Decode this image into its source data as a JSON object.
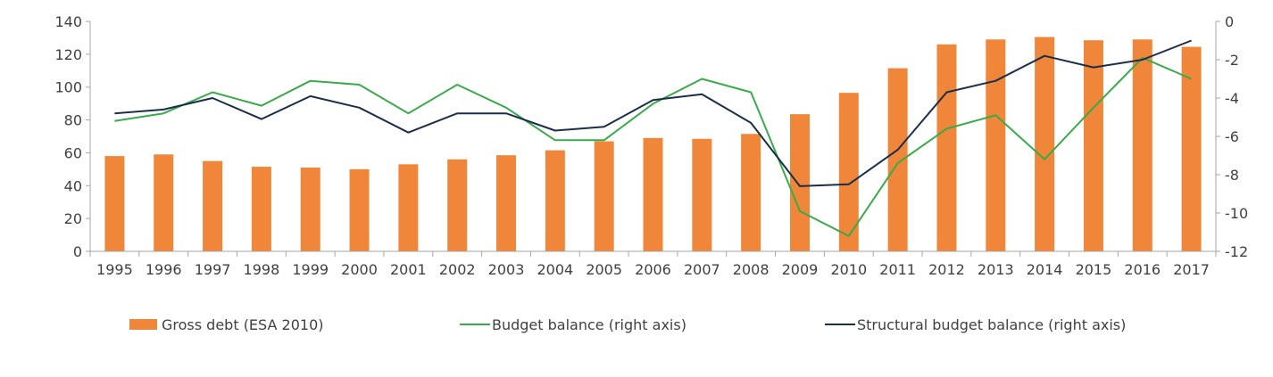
{
  "chart_data": {
    "type": "bar",
    "categories": [
      "1995",
      "1996",
      "1997",
      "1998",
      "1999",
      "2000",
      "2001",
      "2002",
      "2003",
      "2004",
      "2005",
      "2006",
      "2007",
      "2008",
      "2009",
      "2010",
      "2011",
      "2012",
      "2013",
      "2014",
      "2015",
      "2016",
      "2017"
    ],
    "series": [
      {
        "name": "Gross debt (ESA 2010)",
        "type": "bar",
        "axis": "left",
        "color": "#f0863a",
        "values": [
          58,
          59,
          55,
          51.5,
          51,
          50,
          53,
          56,
          58.5,
          61.5,
          67,
          69,
          68.5,
          71.5,
          83.5,
          96.5,
          111.5,
          126,
          129,
          130.5,
          128.5,
          129,
          124.5
        ]
      },
      {
        "name": "Budget balance (right axis)",
        "type": "line",
        "axis": "right",
        "color": "#3aaa4a",
        "values": [
          -5.2,
          -4.8,
          -3.7,
          -4.4,
          -3.1,
          -3.3,
          -4.8,
          -3.3,
          -4.5,
          -6.2,
          -6.2,
          -4.3,
          -3.0,
          -3.7,
          -9.9,
          -11.2,
          -7.4,
          -5.6,
          -4.9,
          -7.2,
          -4.5,
          -1.9,
          -3.0
        ]
      },
      {
        "name": "Structural budget balance (right axis)",
        "type": "line",
        "axis": "right",
        "color": "#1a2e4a",
        "values": [
          -4.8,
          -4.6,
          -4.0,
          -5.1,
          -3.9,
          -4.5,
          -5.8,
          -4.8,
          -4.8,
          -5.7,
          -5.5,
          -4.1,
          -3.8,
          -5.3,
          -8.6,
          -8.5,
          -6.7,
          -3.7,
          -3.1,
          -1.8,
          -2.4,
          -2.0,
          -1.0
        ]
      }
    ],
    "y_left": {
      "min": 0,
      "max": 140,
      "step": 20,
      "ticks": [
        "0",
        "20",
        "40",
        "60",
        "80",
        "100",
        "120",
        "140"
      ]
    },
    "y_right": {
      "min": -12,
      "max": 0,
      "step": 2,
      "ticks": [
        "-12",
        "-10",
        "-8",
        "-6",
        "-4",
        "-2",
        "0"
      ]
    },
    "title": "",
    "xlabel": "",
    "ylabel": "",
    "grid": false,
    "legend_position": "bottom",
    "legend": [
      {
        "label": "Gross debt (ESA 2010)",
        "marker": "bar",
        "color": "#f0863a"
      },
      {
        "label": "Budget balance (right axis)",
        "marker": "line",
        "color": "#3aaa4a"
      },
      {
        "label": "Structural budget balance (right axis)",
        "marker": "line",
        "color": "#1a2e4a"
      }
    ],
    "axis_color": "#a6a6a6",
    "text_color": "#404040"
  }
}
